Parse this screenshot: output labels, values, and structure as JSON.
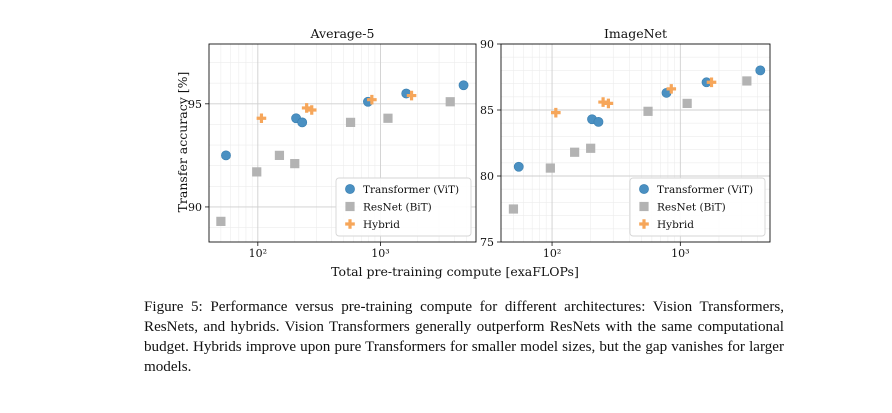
{
  "figure": {
    "ylabel": "Transfer accuracy [%]",
    "xlabel": "Total pre-training compute [exaFLOPs]",
    "legend": {
      "items": [
        {
          "label": "Transformer (ViT)",
          "color": "#4a90c2",
          "marker": "circle"
        },
        {
          "label": "ResNet (BiT)",
          "color": "#b3b3b3",
          "marker": "square"
        },
        {
          "label": "Hybrid",
          "color": "#f6a65a",
          "marker": "plus"
        }
      ]
    }
  },
  "chart_data": [
    {
      "type": "scatter",
      "title": "Average-5",
      "xscale": "log",
      "xlim": [
        40,
        6000
      ],
      "ylim": [
        88.3,
        97.9
      ],
      "yticks": [
        90,
        95
      ],
      "xticks": [
        {
          "value": 100,
          "label": "10²"
        },
        {
          "value": 1000,
          "label": "10³"
        }
      ],
      "legend_position": "bottom-right",
      "grid": true,
      "series": [
        {
          "name": "Transformer (ViT)",
          "color": "#4a90c2",
          "marker": "circle",
          "points": [
            [
              55,
              92.5
            ],
            [
              205,
              94.3
            ],
            [
              230,
              94.1
            ],
            [
              790,
              95.1
            ],
            [
              1620,
              95.5
            ],
            [
              4750,
              95.9
            ]
          ]
        },
        {
          "name": "ResNet (BiT)",
          "color": "#b3b3b3",
          "marker": "square",
          "points": [
            [
              50,
              89.3
            ],
            [
              98,
              91.7
            ],
            [
              150,
              92.5
            ],
            [
              200,
              92.1
            ],
            [
              570,
              94.1
            ],
            [
              1150,
              94.3
            ],
            [
              3700,
              95.1
            ]
          ]
        },
        {
          "name": "Hybrid",
          "color": "#f6a65a",
          "marker": "plus",
          "points": [
            [
              107,
              94.3
            ],
            [
              250,
              94.8
            ],
            [
              275,
              94.7
            ],
            [
              850,
              95.2
            ],
            [
              1790,
              95.4
            ]
          ]
        }
      ]
    },
    {
      "type": "scatter",
      "title": "ImageNet",
      "xscale": "log",
      "xlim": [
        40,
        5000
      ],
      "ylim": [
        75,
        90
      ],
      "yticks": [
        75,
        80,
        85,
        90
      ],
      "xticks": [
        {
          "value": 100,
          "label": "10²"
        },
        {
          "value": 1000,
          "label": "10³"
        }
      ],
      "legend_position": "bottom-right",
      "grid": true,
      "series": [
        {
          "name": "Transformer (ViT)",
          "color": "#4a90c2",
          "marker": "circle",
          "points": [
            [
              55,
              80.7
            ],
            [
              205,
              84.3
            ],
            [
              230,
              84.1
            ],
            [
              780,
              86.3
            ],
            [
              1600,
              87.1
            ],
            [
              4200,
              88.0
            ]
          ]
        },
        {
          "name": "ResNet (BiT)",
          "color": "#b3b3b3",
          "marker": "square",
          "points": [
            [
              50,
              77.5
            ],
            [
              97,
              80.6
            ],
            [
              150,
              81.8
            ],
            [
              200,
              82.1
            ],
            [
              560,
              84.9
            ],
            [
              1130,
              85.5
            ],
            [
              3300,
              87.2
            ]
          ]
        },
        {
          "name": "Hybrid",
          "color": "#f6a65a",
          "marker": "plus",
          "points": [
            [
              107,
              84.8
            ],
            [
              250,
              85.6
            ],
            [
              275,
              85.5
            ],
            [
              850,
              86.6
            ],
            [
              1750,
              87.1
            ]
          ]
        }
      ]
    }
  ],
  "caption": {
    "label": "Figure 5:",
    "text": "Performance versus pre-training compute for different architectures: Vision Transformers, ResNets, and hybrids. Vision Transformers generally outperform ResNets with the same computational budget. Hybrids improve upon pure Transformers for smaller model sizes, but the gap vanishes for larger models."
  }
}
